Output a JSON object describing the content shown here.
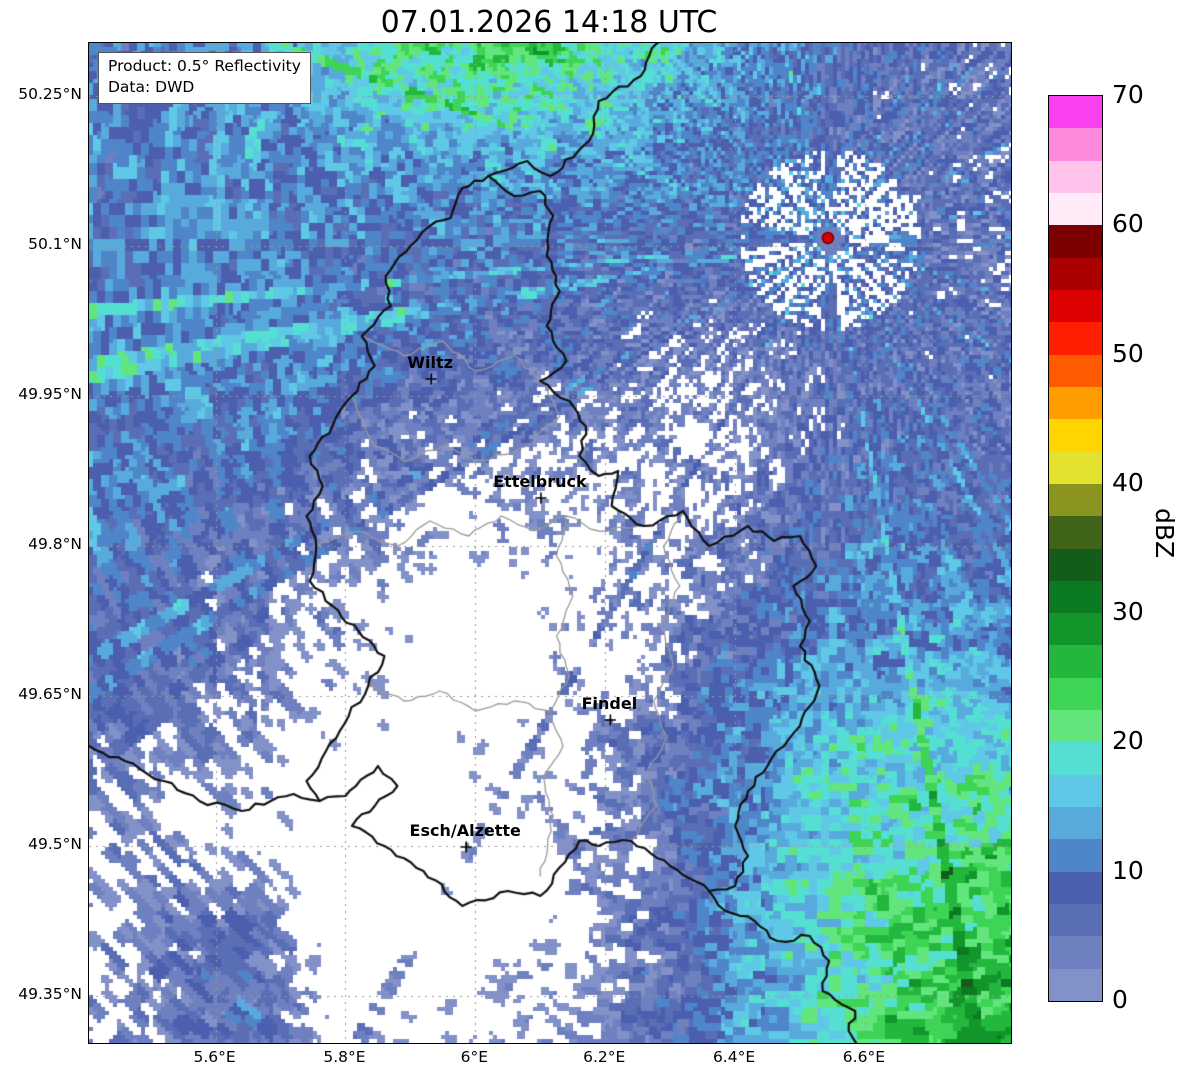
{
  "title": "07.01.2026 14:18 UTC",
  "info_box": {
    "line1": "Product: 0.5° Reflectivity",
    "line2": "Data: DWD"
  },
  "colorbar": {
    "label": "dBZ",
    "min": 0,
    "max": 70,
    "step": 2.5,
    "ticks": [
      0,
      10,
      20,
      30,
      40,
      50,
      60,
      70
    ],
    "colors": [
      "#8391c9",
      "#6f80c0",
      "#5a6eb6",
      "#4b5fae",
      "#4f86c9",
      "#58aadd",
      "#5fc8e6",
      "#55dfd3",
      "#63e57d",
      "#3ed455",
      "#23b83d",
      "#12962c",
      "#0b7a23",
      "#145c1a",
      "#3f641a",
      "#8b941f",
      "#e3e32f",
      "#ffd400",
      "#ff9c00",
      "#ff5a00",
      "#ff1e00",
      "#dc0000",
      "#ab0000",
      "#7d0000",
      "#ffeaf7",
      "#ffc3ec",
      "#ff8add",
      "#f840f0"
    ]
  },
  "map": {
    "lon_min": 5.405,
    "lon_max": 6.825,
    "lat_min": 49.303,
    "lat_max": 50.303,
    "x_ticks": [
      {
        "value": 5.6,
        "label": "5.6°E"
      },
      {
        "value": 5.8,
        "label": "5.8°E"
      },
      {
        "value": 6.0,
        "label": "6°E"
      },
      {
        "value": 6.2,
        "label": "6.2°E"
      },
      {
        "value": 6.4,
        "label": "6.4°E"
      },
      {
        "value": 6.6,
        "label": "6.6°E"
      }
    ],
    "y_ticks": [
      {
        "value": 50.25,
        "label": "50.25°N"
      },
      {
        "value": 50.1,
        "label": "50.1°N"
      },
      {
        "value": 49.95,
        "label": "49.95°N"
      },
      {
        "value": 49.8,
        "label": "49.8°N"
      },
      {
        "value": 49.65,
        "label": "49.65°N"
      },
      {
        "value": 49.5,
        "label": "49.5°N"
      },
      {
        "value": 49.35,
        "label": "49.35°N"
      }
    ],
    "cities": [
      {
        "name": "Wiltz",
        "lon": 5.932,
        "lat": 49.967
      },
      {
        "name": "Ettelbruck",
        "lon": 6.101,
        "lat": 49.848
      },
      {
        "name": "Findel",
        "lon": 6.208,
        "lat": 49.626
      },
      {
        "name": "Esch/Alzette",
        "lon": 5.986,
        "lat": 49.499
      }
    ],
    "radar_site": {
      "lon": 6.543,
      "lat": 50.108,
      "color": "#d40000"
    },
    "borders": {
      "black": [
        [
          [
            6.02,
            50.17
          ],
          [
            6.06,
            50.15
          ],
          [
            6.1,
            50.155
          ],
          [
            6.12,
            50.13
          ],
          [
            6.11,
            50.09
          ],
          [
            6.13,
            50.055
          ],
          [
            6.11,
            50.02
          ],
          [
            6.14,
            49.985
          ],
          [
            6.1,
            49.965
          ],
          [
            6.145,
            49.945
          ],
          [
            6.17,
            49.92
          ],
          [
            6.16,
            49.89
          ],
          [
            6.19,
            49.87
          ],
          [
            6.22,
            49.875
          ],
          [
            6.21,
            49.84
          ],
          [
            6.26,
            49.82
          ],
          [
            6.32,
            49.835
          ],
          [
            6.36,
            49.8
          ],
          [
            6.42,
            49.82
          ],
          [
            6.46,
            49.805
          ],
          [
            6.5,
            49.81
          ],
          [
            6.525,
            49.78
          ],
          [
            6.49,
            49.76
          ],
          [
            6.515,
            49.725
          ],
          [
            6.5,
            49.7
          ],
          [
            6.53,
            49.66
          ],
          [
            6.5,
            49.62
          ],
          [
            6.45,
            49.58
          ],
          [
            6.42,
            49.555
          ],
          [
            6.4,
            49.52
          ],
          [
            6.42,
            49.49
          ],
          [
            6.4,
            49.46
          ],
          [
            6.36,
            49.455
          ],
          [
            6.3,
            49.48
          ],
          [
            6.24,
            49.505
          ],
          [
            6.19,
            49.5
          ],
          [
            6.16,
            49.505
          ],
          [
            6.1,
            49.45
          ],
          [
            6.05,
            49.455
          ],
          [
            5.98,
            49.44
          ],
          [
            5.92,
            49.475
          ],
          [
            5.86,
            49.5
          ],
          [
            5.81,
            49.52
          ],
          [
            5.845,
            49.54
          ],
          [
            5.88,
            49.56
          ],
          [
            5.85,
            49.58
          ],
          [
            5.8,
            49.55
          ],
          [
            5.76,
            49.545
          ],
          [
            5.74,
            49.565
          ],
          [
            5.77,
            49.595
          ],
          [
            5.805,
            49.63
          ],
          [
            5.835,
            49.66
          ],
          [
            5.86,
            49.69
          ],
          [
            5.82,
            49.715
          ],
          [
            5.78,
            49.74
          ],
          [
            5.745,
            49.765
          ],
          [
            5.755,
            49.8
          ],
          [
            5.74,
            49.83
          ],
          [
            5.765,
            49.86
          ],
          [
            5.745,
            49.89
          ],
          [
            5.78,
            49.92
          ],
          [
            5.81,
            49.95
          ],
          [
            5.845,
            49.98
          ],
          [
            5.825,
            50.01
          ],
          [
            5.87,
            50.04
          ],
          [
            5.862,
            50.07
          ],
          [
            5.9,
            50.1
          ],
          [
            5.93,
            50.12
          ],
          [
            5.962,
            50.128
          ],
          [
            5.98,
            50.158
          ],
          [
            6.02,
            50.17
          ]
        ],
        [
          [
            6.02,
            50.17
          ],
          [
            6.08,
            50.185
          ],
          [
            6.115,
            50.17
          ],
          [
            6.175,
            50.205
          ],
          [
            6.19,
            50.245
          ],
          [
            6.255,
            50.27
          ],
          [
            6.28,
            50.303
          ],
          [
            6.315,
            50.31
          ]
        ],
        [
          [
            6.36,
            49.455
          ],
          [
            6.385,
            49.435
          ],
          [
            6.43,
            49.425
          ],
          [
            6.465,
            49.405
          ],
          [
            6.515,
            49.41
          ],
          [
            6.545,
            49.385
          ],
          [
            6.535,
            49.355
          ],
          [
            6.585,
            49.335
          ],
          [
            6.575,
            49.315
          ],
          [
            6.6,
            49.295
          ]
        ],
        [
          [
            5.405,
            49.6
          ],
          [
            5.46,
            49.585
          ],
          [
            5.52,
            49.565
          ],
          [
            5.575,
            49.545
          ],
          [
            5.64,
            49.535
          ],
          [
            5.685,
            49.545
          ],
          [
            5.72,
            49.552
          ],
          [
            5.76,
            49.545
          ]
        ]
      ],
      "gray": [
        [
          [
            5.825,
            50.01
          ],
          [
            5.89,
            49.99
          ],
          [
            5.95,
            50.005
          ],
          [
            6.0,
            49.975
          ],
          [
            6.06,
            49.99
          ],
          [
            6.11,
            49.96
          ],
          [
            6.13,
            49.93
          ],
          [
            6.08,
            49.9
          ],
          [
            6.01,
            49.885
          ],
          [
            5.95,
            49.9
          ],
          [
            5.89,
            49.885
          ],
          [
            5.845,
            49.9
          ],
          [
            5.81,
            49.95
          ]
        ],
        [
          [
            5.755,
            49.8
          ],
          [
            5.82,
            49.815
          ],
          [
            5.88,
            49.8
          ],
          [
            5.93,
            49.825
          ],
          [
            5.99,
            49.81
          ],
          [
            6.04,
            49.83
          ],
          [
            6.09,
            49.815
          ],
          [
            6.14,
            49.83
          ],
          [
            6.19,
            49.815
          ],
          [
            6.25,
            49.82
          ]
        ],
        [
          [
            6.14,
            49.83
          ],
          [
            6.125,
            49.79
          ],
          [
            6.15,
            49.75
          ],
          [
            6.125,
            49.71
          ],
          [
            6.145,
            49.67
          ],
          [
            6.115,
            49.635
          ],
          [
            6.135,
            49.6
          ],
          [
            6.105,
            49.57
          ],
          [
            6.12,
            49.53
          ],
          [
            6.1,
            49.47
          ]
        ],
        [
          [
            6.32,
            49.835
          ],
          [
            6.29,
            49.8
          ],
          [
            6.315,
            49.76
          ],
          [
            6.285,
            49.72
          ],
          [
            6.305,
            49.68
          ],
          [
            6.275,
            49.645
          ],
          [
            6.295,
            49.61
          ],
          [
            6.265,
            49.575
          ],
          [
            6.28,
            49.54
          ],
          [
            6.24,
            49.505
          ]
        ],
        [
          [
            5.835,
            49.66
          ],
          [
            5.89,
            49.645
          ],
          [
            5.945,
            49.655
          ],
          [
            6.0,
            49.635
          ],
          [
            6.06,
            49.645
          ],
          [
            6.115,
            49.635
          ]
        ]
      ]
    }
  },
  "radar_field": {
    "base": 4.5,
    "blobs": [
      {
        "lon": 6.95,
        "lat": 49.22,
        "slon": 0.55,
        "slat": 0.45,
        "amp": 26
      },
      {
        "lon": 6.55,
        "lat": 49.6,
        "slon": 0.28,
        "slat": 0.33,
        "amp": 7
      },
      {
        "lon": 6.05,
        "lat": 50.4,
        "slon": 0.38,
        "slat": 0.18,
        "amp": 22
      },
      {
        "lon": 5.45,
        "lat": 50.12,
        "slon": 0.55,
        "slat": 0.38,
        "amp": 7
      },
      {
        "lon": 6.3,
        "lat": 50.15,
        "slon": 0.5,
        "slat": 0.28,
        "amp": 5
      },
      {
        "lon": 5.5,
        "lat": 49.8,
        "slon": 0.45,
        "slat": 0.35,
        "amp": 5
      },
      {
        "lon": 6.02,
        "lat": 49.7,
        "slon": 0.4,
        "slat": 0.2,
        "amp": -12
      },
      {
        "lon": 5.8,
        "lat": 49.42,
        "slon": 0.45,
        "slat": 0.16,
        "amp": -10
      },
      {
        "lon": 6.38,
        "lat": 49.93,
        "slon": 0.16,
        "slat": 0.12,
        "amp": -6
      },
      {
        "lon": 5.62,
        "lat": 49.37,
        "slon": 0.14,
        "slat": 0.1,
        "amp": 13
      },
      {
        "lon": 6.2,
        "lat": 49.62,
        "slon": 0.3,
        "slat": 0.15,
        "amp": 4
      }
    ]
  }
}
